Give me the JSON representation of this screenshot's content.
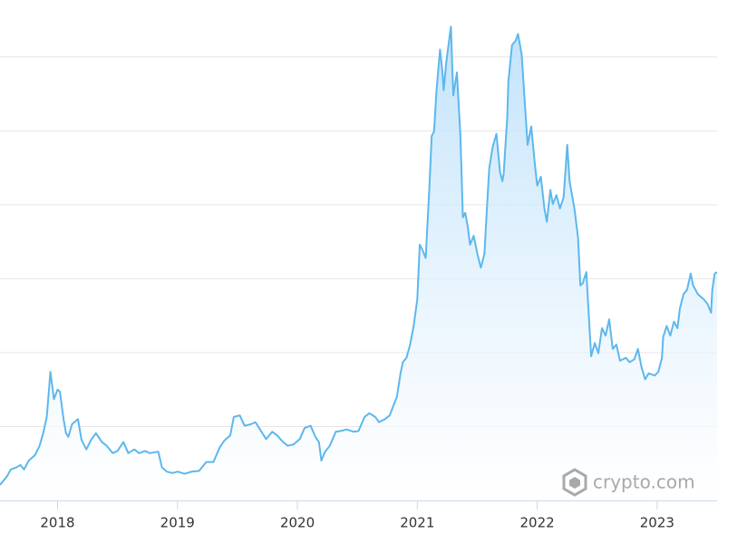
{
  "chart_data": {
    "type": "line",
    "color": "#5db7ee",
    "area": true,
    "watermark": "crypto.com",
    "x": [
      2017.52,
      2017.58,
      2017.61,
      2017.66,
      2017.69,
      2017.72,
      2017.76,
      2017.81,
      2017.85,
      2017.88,
      2017.91,
      2017.94,
      2017.97,
      2018.0,
      2018.02,
      2018.05,
      2018.07,
      2018.09,
      2018.12,
      2018.17,
      2018.2,
      2018.24,
      2018.28,
      2018.32,
      2018.37,
      2018.41,
      2018.46,
      2018.5,
      2018.55,
      2018.59,
      2018.64,
      2018.68,
      2018.73,
      2018.77,
      2018.84,
      2018.87,
      2018.91,
      2018.96,
      2019.0,
      2019.06,
      2019.12,
      2019.18,
      2019.24,
      2019.3,
      2019.35,
      2019.39,
      2019.44,
      2019.47,
      2019.52,
      2019.56,
      2019.61,
      2019.65,
      2019.7,
      2019.74,
      2019.79,
      2019.83,
      2019.88,
      2019.92,
      2019.97,
      2020.02,
      2020.06,
      2020.11,
      2020.15,
      2020.18,
      2020.2,
      2020.23,
      2020.27,
      2020.32,
      2020.36,
      2020.41,
      2020.47,
      2020.51,
      2020.56,
      2020.6,
      2020.65,
      2020.68,
      2020.73,
      2020.77,
      2020.8,
      2020.83,
      2020.86,
      2020.88,
      2020.91,
      2020.94,
      2020.97,
      2021.0,
      2021.02,
      2021.04,
      2021.07,
      2021.1,
      2021.12,
      2021.14,
      2021.16,
      2021.19,
      2021.21,
      2021.22,
      2021.24,
      2021.26,
      2021.28,
      2021.3,
      2021.33,
      2021.36,
      2021.38,
      2021.4,
      2021.42,
      2021.44,
      2021.47,
      2021.5,
      2021.53,
      2021.56,
      2021.58,
      2021.6,
      2021.63,
      2021.66,
      2021.69,
      2021.71,
      2021.72,
      2021.75,
      2021.76,
      2021.79,
      2021.82,
      2021.84,
      2021.87,
      2021.89,
      2021.92,
      2021.95,
      2021.98,
      2022.0,
      2022.03,
      2022.06,
      2022.08,
      2022.11,
      2022.13,
      2022.16,
      2022.19,
      2022.22,
      2022.25,
      2022.27,
      2022.31,
      2022.34,
      2022.36,
      2022.38,
      2022.41,
      2022.43,
      2022.45,
      2022.48,
      2022.51,
      2022.54,
      2022.57,
      2022.6,
      2022.63,
      2022.66,
      2022.69,
      2022.74,
      2022.77,
      2022.81,
      2022.84,
      2022.87,
      2022.9,
      2022.93,
      2022.98,
      2023.01,
      2023.04,
      2023.05,
      2023.08,
      2023.11,
      2023.14,
      2023.17,
      2023.19,
      2023.22,
      2023.25,
      2023.28,
      2023.3,
      2023.34,
      2023.39,
      2023.42,
      2023.45,
      2023.46,
      2023.48,
      2023.5
    ],
    "values": [
      2100,
      3300,
      4200,
      4500,
      4800,
      4200,
      5400,
      6100,
      7400,
      9100,
      11300,
      17400,
      13700,
      15000,
      14700,
      11000,
      9100,
      8600,
      10300,
      11000,
      8200,
      6900,
      8200,
      9100,
      7900,
      7400,
      6400,
      6700,
      7900,
      6400,
      6900,
      6400,
      6700,
      6400,
      6600,
      4500,
      3900,
      3700,
      3900,
      3600,
      3900,
      4000,
      5200,
      5200,
      7100,
      8100,
      8800,
      11300,
      11500,
      10100,
      10300,
      10600,
      9300,
      8300,
      9300,
      8800,
      7900,
      7400,
      7600,
      8300,
      9800,
      10100,
      8600,
      7900,
      5400,
      6600,
      7400,
      9300,
      9400,
      9600,
      9300,
      9400,
      11300,
      11800,
      11300,
      10600,
      11000,
      11500,
      12800,
      14000,
      17200,
      18700,
      19300,
      21100,
      23600,
      27200,
      34600,
      34000,
      32800,
      42000,
      49300,
      49900,
      55500,
      61000,
      57900,
      55500,
      59100,
      61600,
      64100,
      54800,
      57900,
      49300,
      38300,
      38900,
      37100,
      34600,
      35800,
      33400,
      31500,
      33400,
      39300,
      45000,
      47900,
      49600,
      44400,
      43200,
      44200,
      51800,
      56700,
      61600,
      62200,
      63100,
      60400,
      55500,
      48100,
      50600,
      45600,
      42600,
      43800,
      39500,
      37700,
      42000,
      40100,
      41300,
      39500,
      41000,
      48100,
      43200,
      39500,
      35600,
      29100,
      29400,
      30900,
      25000,
      19500,
      21300,
      19900,
      23300,
      22300,
      24500,
      20500,
      21100,
      18900,
      19300,
      18700,
      19100,
      20500,
      18000,
      16400,
      17200,
      16900,
      17400,
      19300,
      22100,
      23600,
      22300,
      24200,
      23300,
      26000,
      27900,
      28500,
      30700,
      29100,
      27900,
      27200,
      26600,
      25400,
      28500,
      30700,
      30900
    ],
    "xlim": [
      2017.52,
      2023.5
    ],
    "xticks": [
      2018,
      2019,
      2020,
      2021,
      2022,
      2023
    ],
    "ylim": [
      0,
      67700
    ],
    "ygrid": [
      10000,
      20000,
      30000,
      40000,
      50000,
      60000
    ]
  }
}
